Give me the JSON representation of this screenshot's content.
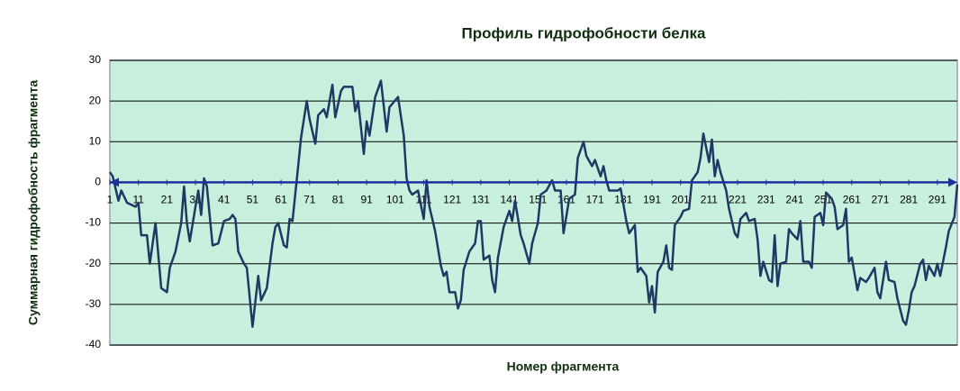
{
  "chart_data": {
    "type": "line",
    "title": "Профиль гидрофобности белка",
    "xlabel": "Номер фрагмента",
    "ylabel": "Суммарная гидрофобность фрагмента",
    "x": [
      1,
      2,
      4,
      5,
      7,
      10,
      11,
      12,
      14,
      15,
      17,
      19,
      21,
      22,
      24,
      26,
      27,
      28,
      29,
      31,
      32,
      33,
      34,
      35,
      37,
      39,
      41,
      43,
      44,
      45,
      46,
      48,
      49,
      51,
      53,
      54,
      56,
      58,
      59,
      60,
      62,
      63,
      64,
      65,
      67,
      68,
      70,
      71,
      73,
      74,
      76,
      77,
      79,
      80,
      82,
      83,
      86,
      87,
      88,
      90,
      91,
      92,
      94,
      96,
      98,
      99,
      102,
      104,
      105,
      106,
      107,
      109,
      111,
      112,
      113,
      115,
      117,
      118,
      119,
      120,
      122,
      123,
      124,
      125,
      127,
      129,
      130,
      131,
      132,
      134,
      135,
      136,
      137,
      139,
      141,
      142,
      143,
      145,
      146,
      148,
      149,
      151,
      152,
      154,
      156,
      157,
      159,
      160,
      162,
      164,
      165,
      167,
      168,
      170,
      171,
      173,
      174,
      175,
      176,
      178,
      179,
      180,
      182,
      183,
      185,
      186,
      187,
      189,
      190,
      191,
      192,
      193,
      195,
      196,
      197,
      198,
      199,
      201,
      202,
      204,
      205,
      206,
      207,
      208,
      209,
      211,
      212,
      213,
      214,
      215,
      217,
      218,
      220,
      221,
      222,
      224,
      225,
      227,
      228,
      229,
      230,
      232,
      233,
      234,
      235,
      236,
      238,
      239,
      240,
      242,
      243,
      244,
      246,
      247,
      248,
      250,
      251,
      252,
      254,
      255,
      256,
      258,
      259,
      260,
      261,
      263,
      264,
      266,
      267,
      269,
      270,
      271,
      273,
      274,
      276,
      277,
      279,
      280,
      281,
      282,
      283,
      285,
      286,
      287,
      288,
      290,
      291,
      292,
      294,
      295,
      297,
      298
    ],
    "series": [
      {
        "name": "Суммарная гидрофобность",
        "color": "#1f3864",
        "values": [
          2.5,
          1.5,
          -4.5,
          -2,
          -5,
          -6,
          -5,
          -13,
          -13,
          -20,
          -10,
          -26,
          -27,
          -21,
          -17,
          -10,
          -1,
          -10,
          -14.5,
          -6,
          -2,
          -8,
          1,
          -1,
          -15.5,
          -15,
          -9.5,
          -9,
          -8,
          -9,
          -17,
          -20,
          -21,
          -35.5,
          -23,
          -29,
          -26,
          -15,
          -11,
          -10,
          -15.5,
          -16,
          -9,
          -9.5,
          4,
          11,
          20,
          15.5,
          9.5,
          16.5,
          18,
          16,
          24,
          16,
          22.5,
          23.5,
          23.5,
          17.5,
          20,
          7,
          15,
          11.5,
          21,
          25,
          12.5,
          18.5,
          21,
          11.5,
          1,
          -2,
          -3,
          -2,
          -9,
          0.5,
          -6,
          -12,
          -20.5,
          -23,
          -22,
          -27,
          -27,
          -31,
          -29,
          -21.5,
          -17,
          -15,
          -9.5,
          -9.5,
          -19,
          -18,
          -24,
          -27,
          -18.5,
          -11,
          -7,
          -9.5,
          -4.5,
          -13,
          -15,
          -20,
          -15,
          -10,
          -3,
          -2,
          0.5,
          -2,
          -2,
          -12.5,
          -4,
          -3,
          6,
          10,
          6.5,
          4,
          5.5,
          1.5,
          4,
          0.5,
          -2,
          -2,
          -2,
          -1.5,
          -9.5,
          -12.5,
          -10.5,
          -22,
          -21,
          -23,
          -29.5,
          -25.5,
          -32,
          -22,
          -19.5,
          -15.5,
          -21,
          -21.5,
          -10.5,
          -8.5,
          -7,
          -6.5,
          0.5,
          1.5,
          2.5,
          6,
          12,
          5,
          10.5,
          1.5,
          5.5,
          2.5,
          -2,
          -6.5,
          -12.5,
          -13.5,
          -9,
          -7.5,
          -9.5,
          -9,
          -14,
          -23,
          -19.5,
          -24,
          -24.5,
          -13,
          -25.5,
          -20,
          -19.5,
          -11.5,
          -12.5,
          -14,
          -9.5,
          -19.5,
          -19.5,
          -21,
          -8.5,
          -7.5,
          -10.5,
          -2.5,
          -4,
          -6,
          -11.5,
          -10.5,
          -6.5,
          -19.5,
          -18.5,
          -26.5,
          -23.5,
          -24.5,
          -23.5,
          -21,
          -27,
          -28.5,
          -19.5,
          -24,
          -24.5,
          -28.5,
          -34,
          -35,
          -31.5,
          -27,
          -25.5,
          -20,
          -19,
          -24,
          -20.5,
          -23,
          -20,
          -23,
          -16,
          -12,
          -8.5,
          -0.5
        ]
      }
    ],
    "xlim": [
      1,
      298
    ],
    "xticks": [
      1,
      11,
      21,
      31,
      41,
      51,
      61,
      71,
      81,
      91,
      101,
      111,
      121,
      131,
      141,
      151,
      161,
      171,
      181,
      191,
      201,
      211,
      221,
      231,
      241,
      251,
      261,
      271,
      281,
      291
    ],
    "ylim": [
      -40,
      30
    ],
    "yticks": [
      -40,
      -30,
      -20,
      -10,
      0,
      10,
      20,
      30
    ],
    "grid": true
  }
}
